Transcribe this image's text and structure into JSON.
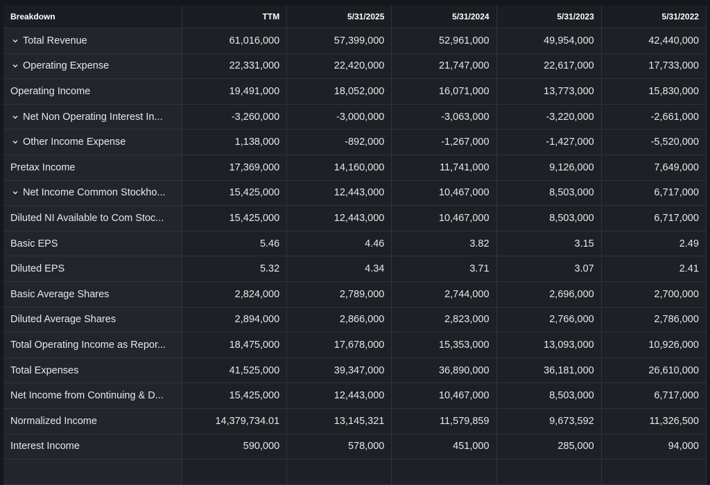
{
  "table": {
    "columns": [
      "Breakdown",
      "TTM",
      "5/31/2025",
      "5/31/2024",
      "5/31/2023",
      "5/31/2022"
    ],
    "rows": [
      {
        "label": "Total Revenue",
        "expandable": true,
        "values": [
          "61,016,000",
          "57,399,000",
          "52,961,000",
          "49,954,000",
          "42,440,000"
        ]
      },
      {
        "label": "Operating Expense",
        "expandable": true,
        "values": [
          "22,331,000",
          "22,420,000",
          "21,747,000",
          "22,617,000",
          "17,733,000"
        ]
      },
      {
        "label": "Operating Income",
        "expandable": false,
        "values": [
          "19,491,000",
          "18,052,000",
          "16,071,000",
          "13,773,000",
          "15,830,000"
        ]
      },
      {
        "label": "Net Non Operating Interest In...",
        "expandable": true,
        "values": [
          "-3,260,000",
          "-3,000,000",
          "-3,063,000",
          "-3,220,000",
          "-2,661,000"
        ]
      },
      {
        "label": "Other Income Expense",
        "expandable": true,
        "values": [
          "1,138,000",
          "-892,000",
          "-1,267,000",
          "-1,427,000",
          "-5,520,000"
        ]
      },
      {
        "label": "Pretax Income",
        "expandable": false,
        "values": [
          "17,369,000",
          "14,160,000",
          "11,741,000",
          "9,126,000",
          "7,649,000"
        ]
      },
      {
        "label": "Net Income Common Stockho...",
        "expandable": true,
        "values": [
          "15,425,000",
          "12,443,000",
          "10,467,000",
          "8,503,000",
          "6,717,000"
        ]
      },
      {
        "label": "Diluted NI Available to Com Stoc...",
        "expandable": false,
        "values": [
          "15,425,000",
          "12,443,000",
          "10,467,000",
          "8,503,000",
          "6,717,000"
        ]
      },
      {
        "label": "Basic EPS",
        "expandable": false,
        "values": [
          "5.46",
          "4.46",
          "3.82",
          "3.15",
          "2.49"
        ]
      },
      {
        "label": "Diluted EPS",
        "expandable": false,
        "values": [
          "5.32",
          "4.34",
          "3.71",
          "3.07",
          "2.41"
        ]
      },
      {
        "label": "Basic Average Shares",
        "expandable": false,
        "values": [
          "2,824,000",
          "2,789,000",
          "2,744,000",
          "2,696,000",
          "2,700,000"
        ]
      },
      {
        "label": "Diluted Average Shares",
        "expandable": false,
        "values": [
          "2,894,000",
          "2,866,000",
          "2,823,000",
          "2,766,000",
          "2,786,000"
        ]
      },
      {
        "label": "Total Operating Income as Repor...",
        "expandable": false,
        "values": [
          "18,475,000",
          "17,678,000",
          "15,353,000",
          "13,093,000",
          "10,926,000"
        ]
      },
      {
        "label": "Total Expenses",
        "expandable": false,
        "values": [
          "41,525,000",
          "39,347,000",
          "36,890,000",
          "36,181,000",
          "26,610,000"
        ]
      },
      {
        "label": "Net Income from Continuing & D...",
        "expandable": false,
        "values": [
          "15,425,000",
          "12,443,000",
          "10,467,000",
          "8,503,000",
          "6,717,000"
        ]
      },
      {
        "label": "Normalized Income",
        "expandable": false,
        "values": [
          "14,379,734.01",
          "13,145,321",
          "11,579,859",
          "9,673,592",
          "11,326,500"
        ]
      },
      {
        "label": "Interest Income",
        "expandable": false,
        "values": [
          "590,000",
          "578,000",
          "451,000",
          "285,000",
          "94,000"
        ]
      }
    ]
  }
}
